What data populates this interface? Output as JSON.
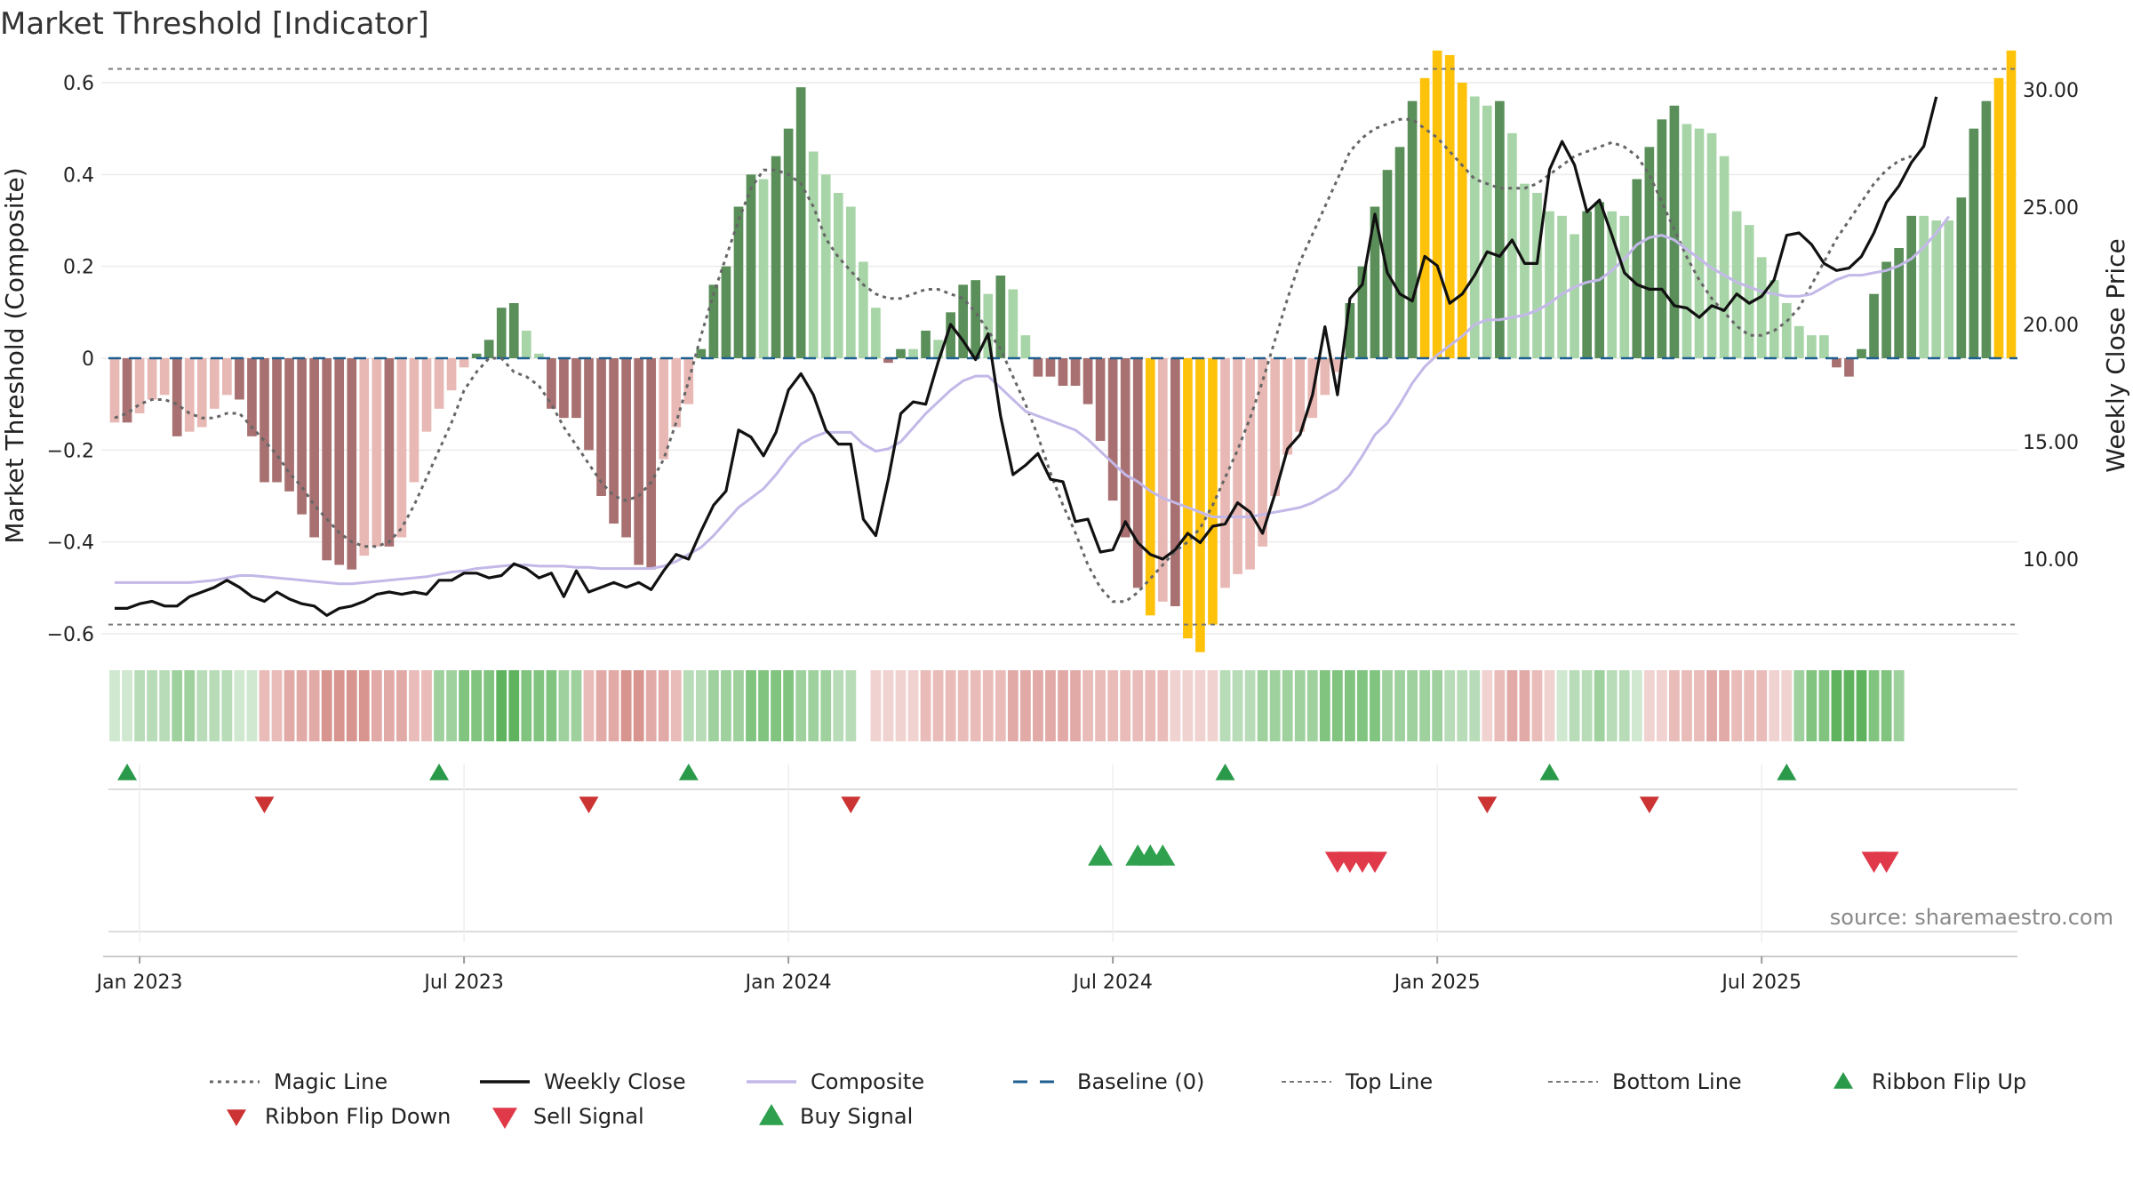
{
  "chart_data": {
    "type": "bar",
    "title": "Market Threshold [Indicator]",
    "ylabel": "Market Threshold (Composite)",
    "y2label": "Weekly Close Price",
    "ylim": [
      -0.73,
      0.75
    ],
    "y2lim": [
      6.5,
      31.5
    ],
    "yticks": [
      {
        "v": 0.6,
        "label": "0.6"
      },
      {
        "v": 0.4,
        "label": "0.4"
      },
      {
        "v": 0.2,
        "label": "0.2"
      },
      {
        "v": 0,
        "label": "0"
      },
      {
        "v": -0.2,
        "label": "−0.2"
      },
      {
        "v": -0.4,
        "label": "−0.4"
      },
      {
        "v": -0.6,
        "label": "−0.6"
      }
    ],
    "y2ticks": [
      {
        "v": 30,
        "label": "30.00"
      },
      {
        "v": 25,
        "label": "25.00"
      },
      {
        "v": 20,
        "label": "20.00"
      },
      {
        "v": 15,
        "label": "15.00"
      },
      {
        "v": 10,
        "label": "10.00"
      }
    ],
    "xticks": [
      {
        "w": 2,
        "label": "Jan 2023"
      },
      {
        "w": 28,
        "label": "Jul 2023"
      },
      {
        "w": 54,
        "label": "Jan 2024"
      },
      {
        "w": 80,
        "label": "Jul 2024"
      },
      {
        "w": 106,
        "label": "Jan 2025"
      },
      {
        "w": 132,
        "label": "Jul 2025"
      }
    ],
    "top_line": 0.63,
    "bottom_line": -0.58,
    "baseline": 0,
    "composite": [
      -0.14,
      -0.14,
      -0.12,
      -0.09,
      -0.08,
      -0.17,
      -0.16,
      -0.15,
      -0.11,
      -0.08,
      -0.09,
      -0.17,
      -0.27,
      -0.27,
      -0.29,
      -0.34,
      -0.39,
      -0.44,
      -0.45,
      -0.46,
      -0.43,
      -0.41,
      -0.41,
      -0.39,
      -0.27,
      -0.16,
      -0.11,
      -0.07,
      -0.02,
      0.01,
      0.04,
      0.11,
      0.12,
      0.06,
      0.01,
      -0.11,
      -0.13,
      -0.13,
      -0.2,
      -0.3,
      -0.36,
      -0.39,
      -0.45,
      -0.46,
      -0.22,
      -0.15,
      -0.1,
      0.02,
      0.16,
      0.2,
      0.33,
      0.4,
      0.39,
      0.44,
      0.5,
      0.59,
      0.45,
      0.4,
      0.36,
      0.33,
      0.21,
      0.11,
      -0.01,
      0.02,
      0.02,
      0.06,
      0.04,
      0.1,
      0.16,
      0.17,
      0.14,
      0.18,
      0.15,
      0.05,
      -0.04,
      -0.04,
      -0.06,
      -0.06,
      -0.1,
      -0.18,
      -0.31,
      -0.39,
      -0.5,
      -0.56,
      -0.53,
      -0.54,
      -0.61,
      -0.64,
      -0.58,
      -0.5,
      -0.47,
      -0.46,
      -0.41,
      -0.3,
      -0.21,
      -0.16,
      -0.13,
      -0.08,
      -0.03,
      0.12,
      0.2,
      0.33,
      0.41,
      0.46,
      0.56,
      0.61,
      0.67,
      0.66,
      0.6,
      0.57,
      0.55,
      0.56,
      0.49,
      0.38,
      0.36,
      0.32,
      0.31,
      0.27,
      0.32,
      0.34,
      0.32,
      0.31,
      0.39,
      0.46,
      0.52,
      0.55,
      0.51,
      0.5,
      0.49,
      0.44,
      0.32,
      0.29,
      0.22,
      0.17,
      0.12,
      0.07,
      0.05,
      0.05,
      -0.02,
      -0.04,
      0.02,
      0.14,
      0.21,
      0.24,
      0.31,
      0.31,
      0.3,
      0.3,
      0.35,
      0.5,
      0.56,
      0.61,
      0.67
    ],
    "weekly_close": [
      7.9,
      7.9,
      8.1,
      8.2,
      8.0,
      8.0,
      8.4,
      8.6,
      8.8,
      9.1,
      8.8,
      8.4,
      8.2,
      8.6,
      8.3,
      8.1,
      8.0,
      7.6,
      7.9,
      8.0,
      8.2,
      8.5,
      8.6,
      8.5,
      8.6,
      8.5,
      9.1,
      9.1,
      9.4,
      9.4,
      9.2,
      9.3,
      9.8,
      9.6,
      9.2,
      9.4,
      8.4,
      9.5,
      8.6,
      8.8,
      9.0,
      8.8,
      9.0,
      8.7,
      9.5,
      10.2,
      10.0,
      11.2,
      12.3,
      12.9,
      15.5,
      15.2,
      14.4,
      15.4,
      17.2,
      17.9,
      17.0,
      15.5,
      14.9,
      14.9,
      11.7,
      11.0,
      13.4,
      16.2,
      16.7,
      16.6,
      18.4,
      20.0,
      19.3,
      18.5,
      19.6,
      16.1,
      13.6,
      14.0,
      14.5,
      13.4,
      13.3,
      11.6,
      11.7,
      10.3,
      10.4,
      11.6,
      10.7,
      10.2,
      10.0,
      10.4,
      11.1,
      10.7,
      11.4,
      11.5,
      12.4,
      12.0,
      11.1,
      12.8,
      14.7,
      15.3,
      17.0,
      19.9,
      17.0,
      21.1,
      21.7,
      24.7,
      22.2,
      21.3,
      21.0,
      22.9,
      22.5,
      20.9,
      21.3,
      22.1,
      23.1,
      22.9,
      23.6,
      22.6,
      22.6,
      26.6,
      27.8,
      26.8,
      24.8,
      25.3,
      23.8,
      22.2,
      21.7,
      21.5,
      21.5,
      20.8,
      20.7,
      20.3,
      20.8,
      20.6,
      21.3,
      20.9,
      21.2,
      21.9,
      23.8,
      23.9,
      23.4,
      22.6,
      22.3,
      22.4,
      22.9,
      23.9,
      25.2,
      25.9,
      26.9,
      27.6,
      29.7
    ],
    "composite_line": [
      9.0,
      9.0,
      9.0,
      9.0,
      9.0,
      9.0,
      9.0,
      9.05,
      9.1,
      9.2,
      9.3,
      9.3,
      9.25,
      9.2,
      9.15,
      9.1,
      9.05,
      9.0,
      8.95,
      8.95,
      9.0,
      9.05,
      9.1,
      9.15,
      9.2,
      9.25,
      9.35,
      9.45,
      9.5,
      9.6,
      9.65,
      9.7,
      9.75,
      9.75,
      9.7,
      9.7,
      9.7,
      9.65,
      9.65,
      9.6,
      9.6,
      9.6,
      9.6,
      9.6,
      9.7,
      9.9,
      10.2,
      10.5,
      11.0,
      11.6,
      12.2,
      12.6,
      13.0,
      13.6,
      14.3,
      14.9,
      15.2,
      15.4,
      15.4,
      15.4,
      14.9,
      14.6,
      14.7,
      15.0,
      15.6,
      16.2,
      16.7,
      17.2,
      17.6,
      17.8,
      17.8,
      17.3,
      16.8,
      16.3,
      16.1,
      15.9,
      15.7,
      15.5,
      15.1,
      14.6,
      14.1,
      13.6,
      13.3,
      12.9,
      12.6,
      12.4,
      12.2,
      12.0,
      11.8,
      11.8,
      11.8,
      11.8,
      11.9,
      12.0,
      12.1,
      12.2,
      12.4,
      12.7,
      13.0,
      13.6,
      14.4,
      15.3,
      15.8,
      16.6,
      17.5,
      18.2,
      18.7,
      19.1,
      19.5,
      20.0,
      20.2,
      20.2,
      20.3,
      20.4,
      20.6,
      20.9,
      21.3,
      21.6,
      21.8,
      21.9,
      22.3,
      22.8,
      23.4,
      23.7,
      23.8,
      23.6,
      23.2,
      22.8,
      22.4,
      22.1,
      21.8,
      21.6,
      21.4,
      21.3,
      21.2,
      21.2,
      21.3,
      21.6,
      21.9,
      22.1,
      22.1,
      22.2,
      22.3,
      22.5,
      22.8,
      23.3,
      23.9,
      24.6
    ],
    "magic_line": [
      -0.13,
      -0.12,
      -0.1,
      -0.09,
      -0.09,
      -0.1,
      -0.12,
      -0.13,
      -0.13,
      -0.12,
      -0.12,
      -0.15,
      -0.18,
      -0.21,
      -0.25,
      -0.28,
      -0.32,
      -0.35,
      -0.38,
      -0.4,
      -0.41,
      -0.41,
      -0.4,
      -0.37,
      -0.32,
      -0.26,
      -0.2,
      -0.14,
      -0.07,
      -0.03,
      0.0,
      0.0,
      -0.03,
      -0.04,
      -0.06,
      -0.1,
      -0.15,
      -0.19,
      -0.23,
      -0.27,
      -0.3,
      -0.31,
      -0.3,
      -0.27,
      -0.22,
      -0.14,
      -0.05,
      0.05,
      0.14,
      0.22,
      0.3,
      0.37,
      0.41,
      0.41,
      0.4,
      0.38,
      0.33,
      0.26,
      0.22,
      0.19,
      0.16,
      0.14,
      0.13,
      0.13,
      0.14,
      0.15,
      0.15,
      0.14,
      0.13,
      0.1,
      0.06,
      0.02,
      -0.04,
      -0.1,
      -0.17,
      -0.25,
      -0.32,
      -0.38,
      -0.45,
      -0.5,
      -0.53,
      -0.53,
      -0.51,
      -0.48,
      -0.45,
      -0.42,
      -0.4,
      -0.37,
      -0.32,
      -0.26,
      -0.2,
      -0.13,
      -0.05,
      0.04,
      0.13,
      0.21,
      0.27,
      0.33,
      0.39,
      0.45,
      0.48,
      0.5,
      0.51,
      0.52,
      0.52,
      0.5,
      0.48,
      0.45,
      0.42,
      0.39,
      0.38,
      0.37,
      0.37,
      0.37,
      0.38,
      0.4,
      0.42,
      0.44,
      0.45,
      0.46,
      0.47,
      0.46,
      0.44,
      0.4,
      0.34,
      0.28,
      0.22,
      0.17,
      0.13,
      0.1,
      0.07,
      0.05,
      0.05,
      0.06,
      0.08,
      0.11,
      0.16,
      0.21,
      0.26,
      0.3,
      0.34,
      0.38,
      0.41,
      0.43,
      0.44
    ],
    "ribbon": [
      {
        "n": 12,
        "c": "g"
      },
      {
        "n": 14,
        "c": "r"
      },
      {
        "n": 12,
        "c": "g"
      },
      {
        "n": 8,
        "c": "r"
      },
      {
        "n": 14,
        "c": "g"
      },
      {
        "n": 1,
        "c": "x"
      },
      {
        "n": 28,
        "c": "r"
      },
      {
        "n": 21,
        "c": "g"
      },
      {
        "n": 6,
        "c": "r"
      },
      {
        "n": 7,
        "c": "g"
      },
      {
        "n": 12,
        "c": "r"
      },
      {
        "n": 9,
        "c": "g"
      }
    ],
    "ribbon_flip_up_weeks": [
      1,
      26,
      46,
      89,
      115,
      134
    ],
    "ribbon_flip_down_weeks": [
      12,
      38,
      59,
      110,
      123
    ],
    "buy_signal_weeks": [
      79,
      82,
      83,
      84
    ],
    "sell_signal_weeks": [
      98,
      99,
      100,
      101,
      141,
      142
    ],
    "legend": [
      {
        "key": "magic",
        "label": "Magic Line"
      },
      {
        "key": "close",
        "label": "Weekly Close"
      },
      {
        "key": "composite",
        "label": "Composite"
      },
      {
        "key": "baseline",
        "label": "Baseline (0)"
      },
      {
        "key": "top",
        "label": "Top Line"
      },
      {
        "key": "bottom",
        "label": "Bottom Line"
      },
      {
        "key": "flipup",
        "label": "Ribbon Flip Up"
      },
      {
        "key": "flipdown",
        "label": "Ribbon Flip Down"
      },
      {
        "key": "sell",
        "label": "Sell Signal"
      },
      {
        "key": "buy",
        "label": "Buy Signal"
      }
    ],
    "source": "source: sharemaestro.com",
    "colors": {
      "green_dark": "#5a8f5a",
      "green_light": "#a8d5a8",
      "red_dark": "#a87070",
      "red_light": "#e8b8b4",
      "gold": "#ffc20a",
      "close": "#111111",
      "composite_line": "#c3b8e8",
      "magic": "#666666",
      "baseline": "#1f5f8f",
      "level": "#777777",
      "flip_up": "#2a9a4a",
      "flip_down": "#cc3333",
      "buy": "#2ea04e",
      "sell": "#e03a4a"
    }
  }
}
